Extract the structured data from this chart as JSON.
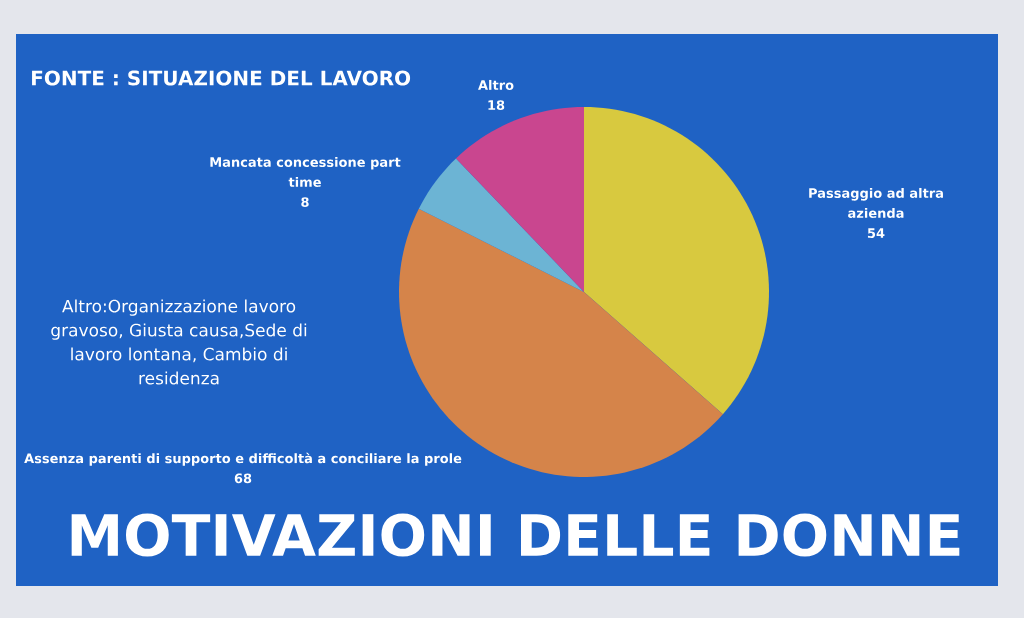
{
  "chart_data": {
    "type": "pie",
    "title": "MOTIVAZIONI DELLE DONNE",
    "subtitle": "FONTE : SITUAZIONE DEL LAVORO",
    "categories": [
      "Passaggio ad altra azienda",
      "Assenza parenti di supporto e difficoltà a conciliare la prole",
      "Mancata concessione part time",
      "Altro"
    ],
    "values": [
      54,
      68,
      8,
      18
    ],
    "colors": [
      "#d8c93f",
      "#d5844a",
      "#6cb4d4",
      "#c9468f"
    ],
    "data_labels": true,
    "annotations": [
      "Altro:Organizzazione lavoro gravoso, Giusta causa,Sede di lavoro lontana, Cambio di residenza"
    ]
  }
}
